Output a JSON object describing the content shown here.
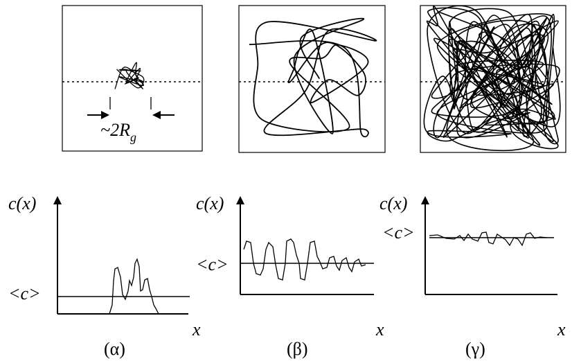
{
  "panels": [
    {
      "size_label": {
        "main": "~2R",
        "subscript": "g"
      },
      "y_label": "c(x)",
      "mean_label": "<c>",
      "x_label": "x",
      "caption": "(α)"
    },
    {
      "y_label": "c(x)",
      "mean_label": "<c>",
      "x_label": "x",
      "caption": "(β)"
    },
    {
      "y_label": "c(x)",
      "mean_label": "<c>",
      "x_label": "x",
      "caption": "(γ)"
    }
  ]
}
